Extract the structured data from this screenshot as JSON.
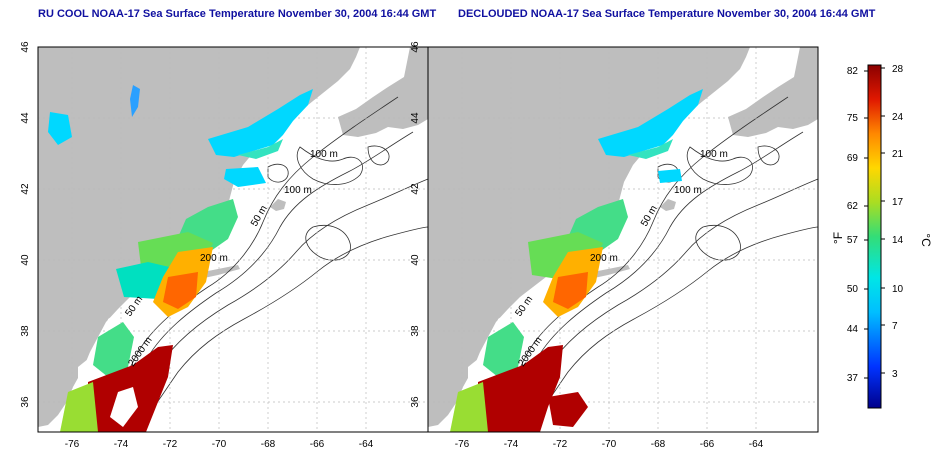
{
  "panels": [
    {
      "title": "RU COOL NOAA-17 Sea Surface Temperature November 30, 2004 16:44 GMT",
      "xlabels": [
        "-76",
        "-74",
        "-72",
        "-70",
        "-68",
        "-66",
        "-64"
      ],
      "ylabels": [
        "46",
        "44",
        "42",
        "40",
        "38",
        "36"
      ],
      "contour_labels": [
        "100 m",
        "100 m",
        "50 m",
        "200 m",
        "50 m",
        "2000 m"
      ]
    },
    {
      "title": "DECLOUDED NOAA-17 Sea Surface Temperature November 30, 2004 16:44 GMT",
      "xlabels": [
        "-76",
        "-74",
        "-72",
        "-70",
        "-68",
        "-66",
        "-64"
      ],
      "ylabels": [
        "46",
        "44",
        "42",
        "40",
        "38",
        "36"
      ],
      "contour_labels": [
        "100 m",
        "100 m",
        "50 m",
        "200 m",
        "50 m",
        "2000 m"
      ]
    }
  ],
  "colorbar": {
    "f_label": "°F",
    "c_label": "°C",
    "f_ticks": [
      "82",
      "75",
      "69",
      "62",
      "57",
      "50",
      "44",
      "37"
    ],
    "c_ticks": [
      "28",
      "24",
      "21",
      "17",
      "14",
      "10",
      "7",
      "3"
    ]
  },
  "colors": {
    "land": "#bebebe",
    "title": "#1010a0",
    "cold": "#00d8ff",
    "warm": "#b00000"
  }
}
